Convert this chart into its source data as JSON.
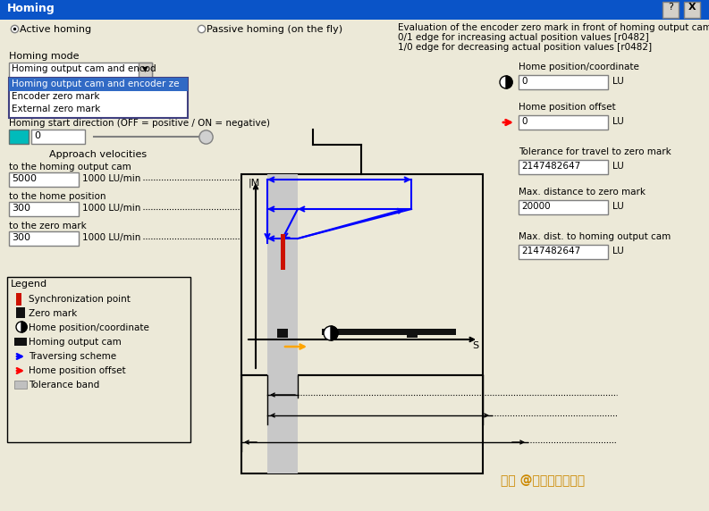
{
  "title": "Homing",
  "bg_outer": "#d4d0c8",
  "dialog_bg": "#ece9d8",
  "title_bar_color": "#0a54c8",
  "title_text_color": "#ffffff",
  "radio_active": "Active homing",
  "radio_passive": "Passive homing (on the fly)",
  "homing_mode_label": "Homing mode",
  "dropdown_text": "Homing output cam and encod",
  "dropdown_items": [
    "Homing output cam and encoder ze",
    "Encoder zero mark",
    "External zero mark"
  ],
  "start_dir_label": "Homing start direction (OFF = positive / ON = negative)",
  "approach_vel_label": "Approach velocities",
  "vel1_label": "to the homing output cam",
  "vel1_value": "5000",
  "vel1_unit": "1000 LU/min",
  "vel2_label": "to the home position",
  "vel2_value": "300",
  "vel2_unit": "1000 LU/min",
  "vel3_label": "to the zero mark",
  "vel3_value": "300",
  "vel3_unit": "1000 LU/min",
  "legend_title": "Legend",
  "legend_items": [
    {
      "label": "Synchronization point"
    },
    {
      "label": "Zero mark"
    },
    {
      "label": "Home position/coordinate"
    },
    {
      "label": "Homing output cam"
    },
    {
      "label": "Traversing scheme"
    },
    {
      "label": "Home position offset"
    },
    {
      "label": "Tolerance band"
    }
  ],
  "eval_text_line1": "Evaluation of the encoder zero mark in front of homing output cam",
  "eval_text_line2": "0/1 edge for increasing actual position values [r0482]",
  "eval_text_line3": "1/0 edge for decreasing actual position values [r0482]",
  "right_labels": [
    "Home position/coordinate",
    "Home position offset",
    "Tolerance for travel to zero mark",
    "Max. distance to zero mark",
    "Max. dist. to homing output cam"
  ],
  "right_values": [
    "0",
    "0",
    "2147482647",
    "20000",
    "2147482647"
  ],
  "watermark": "头条 @电气自动化应用"
}
